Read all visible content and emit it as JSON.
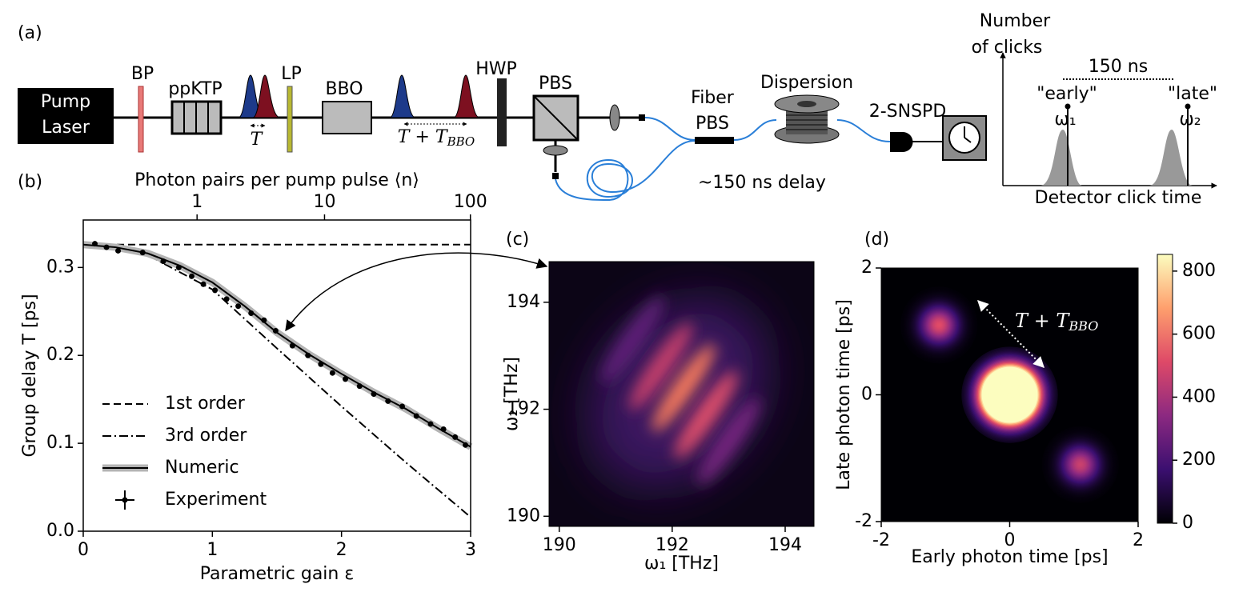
{
  "panel_labels": [
    "(a)",
    "(b)",
    "(c)",
    "(d)"
  ],
  "setup": {
    "pump_laser": [
      "Pump",
      "Laser"
    ],
    "bp": "BP",
    "ppktp": "ppKTP",
    "lp": "LP",
    "bbo": "BBO",
    "hwp": "HWP",
    "pbs": "PBS",
    "fiber_pbs": [
      "Fiber",
      "PBS"
    ],
    "dispersion": "Dispersion",
    "detector": "2-SNSPD",
    "delay": "~150 ns delay",
    "delay_T": "T",
    "delay_total": {
      "main": "T + T",
      "sub": "BBO"
    }
  },
  "timing_sketch": {
    "ylabel": [
      "Number",
      "of clicks"
    ],
    "separation": "150 ns",
    "early": "\"early\"",
    "early_freq": "ω₁",
    "late": "\"late\"",
    "late_freq": "ω₂",
    "xlabel": "Detector click time"
  },
  "chart_data": [
    {
      "type": "line",
      "top_axis_label": "Photon pairs per pump pulse ⟨n⟩",
      "xlabel": "Parametric gain ε",
      "ylabel": "Group delay T [ps]",
      "xlim": [
        0,
        3
      ],
      "xticks": [
        0,
        1,
        2,
        3
      ],
      "ylim": [
        0,
        0.354
      ],
      "yticks": [
        {
          "value": 0,
          "label": "0.0"
        },
        0.1,
        0.2,
        0.3
      ],
      "x2lim": [
        0,
        100.3
      ],
      "x2ticks": [
        1,
        10,
        100
      ],
      "legend": "lower left",
      "series": [
        {
          "name": "1st order",
          "style": "dashed",
          "color": "#000000",
          "x": [
            0,
            3
          ],
          "values": [
            0.326,
            0.326
          ]
        },
        {
          "name": "3rd order",
          "style": "dashdot",
          "color": "#000000",
          "x": [
            0,
            0.5,
            1.0,
            1.5,
            2.0,
            2.5,
            3.0
          ],
          "values": [
            0.326,
            0.314,
            0.275,
            0.208,
            0.142,
            0.078,
            0.016
          ]
        },
        {
          "name": "Numeric",
          "style": "solid",
          "color": "#000000",
          "band_color": "#b4b4b4",
          "x": [
            0,
            0.25,
            0.5,
            0.75,
            1.0,
            1.25,
            1.5,
            1.75,
            2.0,
            2.25,
            2.5,
            2.75,
            3.0
          ],
          "values": [
            0.326,
            0.323,
            0.316,
            0.302,
            0.283,
            0.256,
            0.226,
            0.201,
            0.179,
            0.158,
            0.139,
            0.117,
            0.096
          ]
        },
        {
          "name": "Experiment",
          "style": "points",
          "color": "#000000",
          "x": [
            0.09,
            0.18,
            0.27,
            0.46,
            0.62,
            0.74,
            0.84,
            0.93,
            1.02,
            1.11,
            1.2,
            1.3,
            1.4,
            1.49,
            1.62,
            1.74,
            1.84,
            1.93,
            2.03,
            2.14,
            2.25,
            2.36,
            2.47,
            2.58,
            2.69,
            2.79,
            2.88,
            2.96
          ],
          "values": [
            0.327,
            0.323,
            0.319,
            0.317,
            0.307,
            0.3,
            0.29,
            0.281,
            0.274,
            0.264,
            0.256,
            0.248,
            0.24,
            0.228,
            0.211,
            0.2,
            0.19,
            0.18,
            0.173,
            0.165,
            0.156,
            0.148,
            0.142,
            0.131,
            0.122,
            0.116,
            0.107,
            0.098
          ]
        }
      ]
    },
    {
      "type": "heatmap",
      "xlabel": "ω₁ [THz]",
      "ylabel": "ω₂ [THz]",
      "xlim": [
        189.82,
        194.51
      ],
      "xticks": [
        190,
        192,
        194
      ],
      "ylim": [
        189.81,
        194.76
      ],
      "yticks": [
        190,
        192,
        194
      ],
      "background": "#0c0516",
      "envelope": {
        "x": 192.1,
        "y": 192.3,
        "color": "#3b1560"
      },
      "stripes": {
        "x": [
          191.3,
          191.8,
          192.2,
          192.6,
          193.0
        ],
        "values": [
          193.3,
          192.8,
          192.4,
          191.9,
          191.4
        ],
        "colors": [
          "#5e2478",
          "#c53f6a",
          "#f4795b",
          "#e0506a",
          "#74287e"
        ]
      }
    },
    {
      "type": "heatmap",
      "xlabel": "Early photon time [ps]",
      "ylabel": "Late photon time [ps]",
      "xlim": [
        -2,
        2
      ],
      "xticks": [
        -2,
        0,
        2
      ],
      "ylim": [
        -2,
        2
      ],
      "yticks": [
        -2,
        0,
        2
      ],
      "colorbar": {
        "lim": [
          0,
          853
        ],
        "ticks": [
          0,
          200,
          400,
          600,
          800
        ],
        "colormap": [
          "#000004",
          "#3b0f70",
          "#8c2981",
          "#de4968",
          "#fe9f6d",
          "#fcfdbf"
        ]
      },
      "spots": {
        "x": [
          -1.1,
          0,
          1.1
        ],
        "y": [
          1.1,
          0,
          -1.1
        ],
        "values": [
          520,
          4000,
          470
        ],
        "width": [
          0.2,
          0.25,
          0.2
        ]
      },
      "annotation": {
        "main": "T + T",
        "sub": "BBO"
      }
    }
  ]
}
